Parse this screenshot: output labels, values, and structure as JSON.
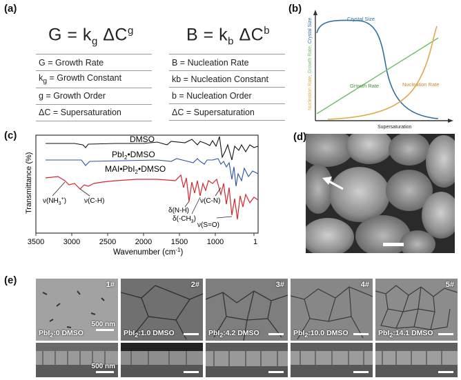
{
  "panel_a": {
    "label": "(a)",
    "growth_eq": {
      "lhs": "G = k",
      "sub": "g",
      "mid": " ΔC",
      "sup": "g"
    },
    "nucleation_eq": {
      "lhs": "B = k",
      "sub": "b",
      "mid": " ΔC",
      "sup": "b"
    },
    "growth_defs": [
      {
        "pre": "G = Growth Rate"
      },
      {
        "pre": "k",
        "sub": "g",
        "post": " = Growth Constant"
      },
      {
        "pre": "g = Growth Order"
      },
      {
        "pre": "ΔC = Supersaturation"
      }
    ],
    "nucleation_defs": [
      {
        "pre": "B = Nucleation Rate"
      },
      {
        "pre": "kb = Nucleation Constant"
      },
      {
        "pre": "b = Nucleation Order"
      },
      {
        "pre": "ΔC = Supersaturation"
      }
    ]
  },
  "panel_b": {
    "label": "(b)",
    "ylabel_parts": [
      "Nucleation Rate, ",
      "Growth Rate, ",
      "Crystal Size"
    ],
    "xlabel": "Supersaturation",
    "curve_labels": {
      "crystal_size": "Crystal Size",
      "growth_rate": "Growth Rate",
      "nucleation_rate": "Nucleation Rate"
    },
    "colors": {
      "crystal_size": "#2f6f9e",
      "growth_rate": "#6fbf6a",
      "nucleation_rate": "#e0a84a"
    }
  },
  "panel_c": {
    "label": "(c)",
    "ylabel": "Transmittance (%)",
    "xlabel": "Wavenumber (cm",
    "xlabel_sup": "-1",
    "xlabel_end": ")",
    "xticks": [
      "3500",
      "3000",
      "2500",
      "2000",
      "1500",
      "1000",
      "1"
    ],
    "traces": {
      "dmso": "DMSO",
      "pbi2": "PbI",
      "pbi2_sub": "2",
      "pbi2_post": "•DMSO",
      "mai": "MAI•PbI",
      "mai_sub": "2",
      "mai_post": "•DMSO"
    },
    "colors": {
      "dmso": "#111111",
      "pbi2": "#2a4fa8",
      "mai": "#d6252b"
    },
    "annotations": {
      "nh3": "ν(NH",
      "nh3_sub": "3",
      "nh3_sup": "+",
      "nh3_end": ")",
      "ch": "ν(C-H)",
      "nh": "δ(N-H)",
      "ch3": "δ(-CH",
      "ch3_sub": "3",
      "ch3_end": ")",
      "cn": "ν(C-N)",
      "so": "ν(S=O)"
    }
  },
  "panel_d": {
    "label": "(d)"
  },
  "panel_e": {
    "label": "(e)",
    "top_scale": "500 nm",
    "bottom_scale": "500 nm",
    "samples": [
      {
        "num": "1#",
        "pre": "PbI",
        "sub": "2",
        "post": ":0 DMSO"
      },
      {
        "num": "2#",
        "pre": "PbI",
        "sub": "2",
        "post": ":1.0 DMSO"
      },
      {
        "num": "3#",
        "pre": "PbI",
        "sub": "2",
        "post": ":4.2 DMSO"
      },
      {
        "num": "4#",
        "pre": "PbI",
        "sub": "2",
        "post": ":10.0 DMSO"
      },
      {
        "num": "5#",
        "pre": "PbI",
        "sub": "2",
        "post": ":14.1 DMSO"
      }
    ]
  }
}
